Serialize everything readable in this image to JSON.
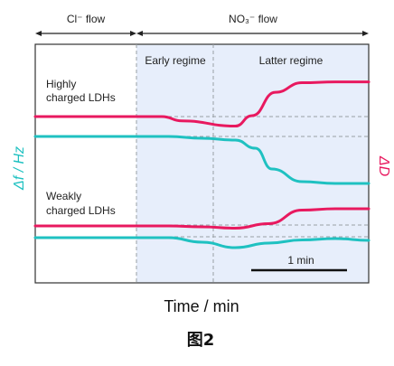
{
  "chart_data": {
    "type": "line",
    "xlabel": "Time / min",
    "ylabel_left": "Δf / Hz",
    "ylabel_right": "ΔD",
    "figure_caption": "图2",
    "phases": [
      {
        "label": "Cl⁻ flow"
      },
      {
        "label": "NO₃⁻ flow"
      }
    ],
    "regimes": [
      {
        "label": "Early regime"
      },
      {
        "label": "Latter regime"
      }
    ],
    "group_labels": [
      {
        "line1": "Highly",
        "line2": "charged LDHs"
      },
      {
        "line1": "Weakly",
        "line2": "charged LDHs"
      }
    ],
    "scale_bar": {
      "label": "1 min"
    },
    "colors": {
      "delta_f": "#1fc1c1",
      "delta_d": "#e8195f",
      "regime_shade": "#e7eefb"
    },
    "series": [
      {
        "name": "",
        "axis": "ΔD",
        "group": "highly charged",
        "points": [
          [
            0.0,
            0.0
          ],
          [
            0.38,
            0.0
          ],
          [
            0.44,
            -0.1
          ],
          [
            0.6,
            -0.22
          ],
          [
            0.65,
            0.02
          ],
          [
            0.72,
            0.56
          ],
          [
            0.8,
            0.78
          ],
          [
            0.9,
            0.8
          ],
          [
            1.0,
            0.8
          ]
        ]
      },
      {
        "name": "",
        "axis": "Δf",
        "group": "highly charged",
        "points": [
          [
            0.0,
            0.0
          ],
          [
            0.4,
            0.0
          ],
          [
            0.5,
            -0.04
          ],
          [
            0.6,
            -0.08
          ],
          [
            0.66,
            -0.26
          ],
          [
            0.71,
            -0.72
          ],
          [
            0.8,
            -1.0
          ],
          [
            0.9,
            -1.04
          ],
          [
            1.0,
            -1.04
          ]
        ]
      },
      {
        "name": "",
        "axis": "ΔD",
        "group": "weakly charged",
        "points": [
          [
            0.0,
            0.0
          ],
          [
            0.4,
            0.0
          ],
          [
            0.5,
            -0.02
          ],
          [
            0.6,
            -0.05
          ],
          [
            0.7,
            0.05
          ],
          [
            0.8,
            0.35
          ],
          [
            0.9,
            0.38
          ],
          [
            1.0,
            0.38
          ]
        ]
      },
      {
        "name": "",
        "axis": "Δf",
        "group": "weakly charged",
        "points": [
          [
            0.0,
            0.0
          ],
          [
            0.4,
            0.0
          ],
          [
            0.5,
            -0.1
          ],
          [
            0.6,
            -0.22
          ],
          [
            0.7,
            -0.12
          ],
          [
            0.8,
            -0.05
          ],
          [
            0.9,
            -0.02
          ],
          [
            1.0,
            -0.06
          ]
        ]
      }
    ]
  }
}
